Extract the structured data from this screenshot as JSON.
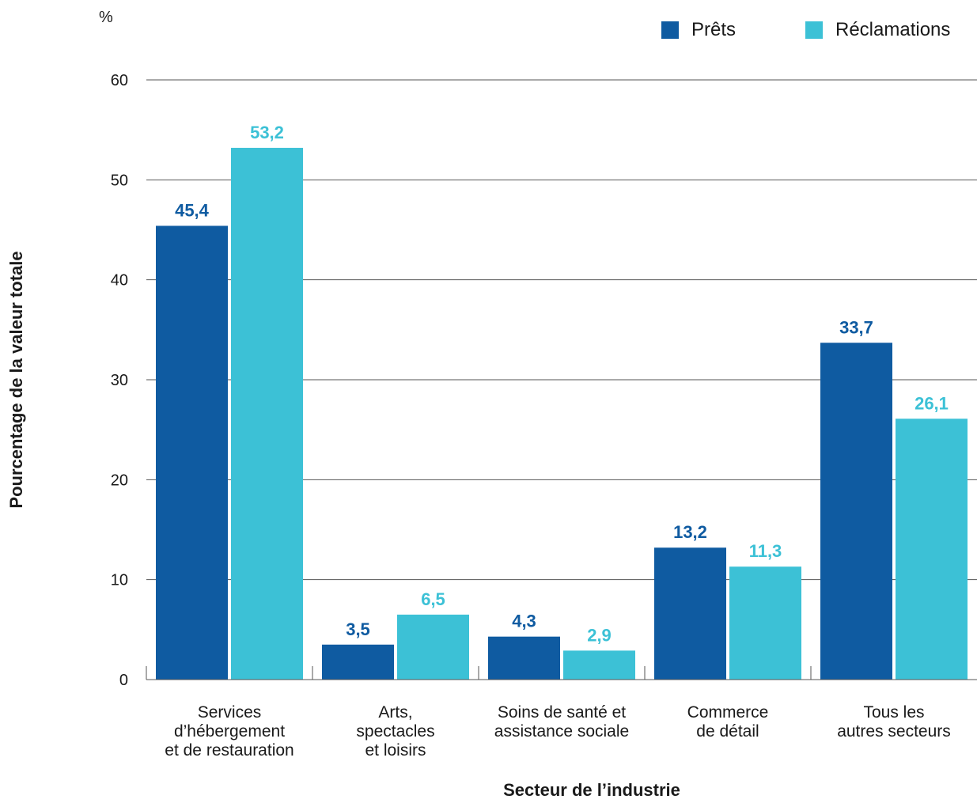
{
  "chart_data": {
    "type": "bar",
    "unit_label": "%",
    "ylabel": "Pourcentage de la valeur totale",
    "xlabel": "Secteur de l’industrie",
    "ylim": [
      0,
      60
    ],
    "yticks": [
      0,
      10,
      20,
      30,
      40,
      50,
      60
    ],
    "yticks_text": [
      "0",
      "10",
      "20",
      "30",
      "40",
      "50",
      "60"
    ],
    "grid": true,
    "legend_position": "top-right",
    "categories": [
      [
        "Services",
        "d’hébergement",
        "et de restauration"
      ],
      [
        "Arts,",
        "spectacles",
        "et loisirs"
      ],
      [
        "Soins de santé et",
        "assistance sociale"
      ],
      [
        "Commerce",
        "de détail"
      ],
      [
        "Tous les",
        "autres secteurs"
      ]
    ],
    "series": [
      {
        "name": "Prêts",
        "color": "#0f5ba1",
        "values": [
          45.4,
          3.5,
          4.3,
          13.2,
          33.7
        ],
        "labels": [
          "45,4",
          "3,5",
          "4,3",
          "13,2",
          "33,7"
        ]
      },
      {
        "name": "Réclamations",
        "color": "#3cc1d6",
        "values": [
          53.2,
          6.5,
          2.9,
          11.3,
          26.1
        ],
        "labels": [
          "53,2",
          "6,5",
          "2,9",
          "11,3",
          "26,1"
        ]
      }
    ]
  }
}
